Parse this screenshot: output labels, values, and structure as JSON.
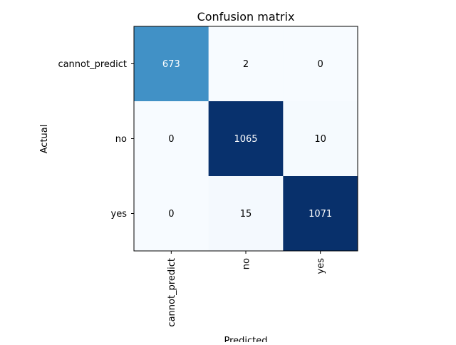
{
  "chart_data": {
    "type": "heatmap",
    "title": "Confusion matrix",
    "xlabel": "Predicted",
    "ylabel": "Actual",
    "x_categories": [
      "cannot_predict",
      "no",
      "yes"
    ],
    "y_categories": [
      "cannot_predict",
      "no",
      "yes"
    ],
    "values": [
      [
        673,
        2,
        0
      ],
      [
        0,
        1065,
        10
      ],
      [
        0,
        15,
        1071
      ]
    ],
    "colormap": "Blues",
    "color_range": [
      0,
      1071
    ],
    "grid": false
  }
}
